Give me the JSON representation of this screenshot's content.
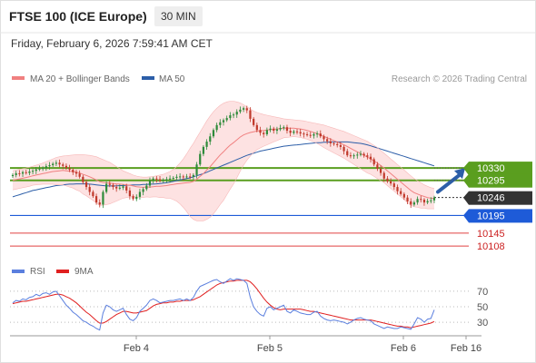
{
  "header": {
    "title": "FTSE 100 (ICE Europe)",
    "timeframe": "30 MIN",
    "datetime": "Friday, February 6, 2026 7:59:41 AM CET"
  },
  "copyright": "Research © 2026 Trading Central",
  "colors": {
    "candle_up": "#2e8b3a",
    "candle_down": "#c0392b",
    "ma20": "#f08080",
    "bollinger_fill": "#fde2e2",
    "ma50": "#2c5ea8",
    "resistance": "#5a9e1f",
    "support": "#1e5bd8",
    "target": "#e04040",
    "last_price": "#333333",
    "rsi": "#5b7fde",
    "rsi_ma": "#e02020",
    "arrow": "#2c5ea8"
  },
  "chart_data": [
    {
      "type": "candlestick",
      "legend": [
        {
          "name": "MA 20 + Bollinger Bands",
          "color": "#f08080"
        },
        {
          "name": "MA 50",
          "color": "#2c5ea8"
        }
      ],
      "x_ticks": [
        "Feb 4",
        "Feb 5",
        "Feb 6",
        "Feb 16"
      ],
      "price_levels": [
        {
          "value": 10330,
          "label": "10330",
          "kind": "resistance"
        },
        {
          "value": 10295,
          "label": "10295",
          "kind": "resistance"
        },
        {
          "value": 10246,
          "label": "10246",
          "kind": "last"
        },
        {
          "value": 10195,
          "label": "10195",
          "kind": "support"
        },
        {
          "value": 10145,
          "label": "10145",
          "kind": "target"
        },
        {
          "value": 10108,
          "label": "10108",
          "kind": "target"
        }
      ],
      "close": [
        10310,
        10315,
        10314,
        10318,
        10316,
        10320,
        10322,
        10326,
        10328,
        10330,
        10335,
        10338,
        10342,
        10345,
        10340,
        10336,
        10330,
        10325,
        10318,
        10314,
        10305,
        10290,
        10276,
        10262,
        10250,
        10232,
        10226,
        10262,
        10285,
        10282,
        10276,
        10272,
        10274,
        10278,
        10266,
        10250,
        10242,
        10248,
        10262,
        10270,
        10280,
        10294,
        10300,
        10298,
        10294,
        10296,
        10298,
        10300,
        10302,
        10305,
        10306,
        10304,
        10306,
        10305,
        10310,
        10340,
        10370,
        10390,
        10405,
        10420,
        10438,
        10452,
        10460,
        10466,
        10472,
        10480,
        10482,
        10490,
        10496,
        10500,
        10494,
        10470,
        10452,
        10438,
        10430,
        10426,
        10438,
        10442,
        10436,
        10440,
        10444,
        10446,
        10436,
        10430,
        10434,
        10432,
        10428,
        10426,
        10424,
        10422,
        10426,
        10428,
        10420,
        10412,
        10406,
        10400,
        10398,
        10395,
        10390,
        10378,
        10366,
        10364,
        10366,
        10368,
        10370,
        10366,
        10362,
        10355,
        10340,
        10328,
        10316,
        10300,
        10292,
        10286,
        10276,
        10264,
        10256,
        10246,
        10235,
        10226,
        10232,
        10242,
        10240,
        10232,
        10236,
        10238,
        10246
      ],
      "ma20": [
        10295,
        10297,
        10299,
        10301,
        10303,
        10305,
        10308,
        10310,
        10312,
        10314,
        10316,
        10318,
        10320,
        10321,
        10322,
        10323,
        10322,
        10321,
        10320,
        10318,
        10316,
        10312,
        10309,
        10305,
        10301,
        10296,
        10291,
        10289,
        10288,
        10287,
        10286,
        10285,
        10284,
        10283,
        10282,
        10281,
        10279,
        10277,
        10276,
        10275,
        10276,
        10276,
        10277,
        10278,
        10278,
        10279,
        10280,
        10282,
        10283,
        10285,
        10286,
        10287,
        10288,
        10289,
        10292,
        10298,
        10306,
        10314,
        10324,
        10334,
        10345,
        10356,
        10367,
        10376,
        10386,
        10395,
        10402,
        10410,
        10418,
        10424,
        10428,
        10431,
        10433,
        10435,
        10436,
        10437,
        10438,
        10439,
        10440,
        10441,
        10442,
        10443,
        10443,
        10443,
        10443,
        10442,
        10441,
        10439,
        10437,
        10434,
        10431,
        10428,
        10424,
        10420,
        10416,
        10412,
        10408,
        10404,
        10400,
        10396,
        10391,
        10386,
        10381,
        10376,
        10371,
        10366,
        10361,
        10356,
        10350,
        10344,
        10337,
        10330,
        10322,
        10314,
        10306,
        10298,
        10290,
        10282,
        10274,
        10266,
        10260,
        10256,
        10252,
        10249,
        10246,
        10244,
        10243
      ],
      "bb_upper": [
        10322,
        10324,
        10326,
        10328,
        10330,
        10332,
        10335,
        10338,
        10341,
        10344,
        10348,
        10352,
        10356,
        10360,
        10362,
        10364,
        10365,
        10366,
        10367,
        10368,
        10368,
        10368,
        10367,
        10366,
        10364,
        10362,
        10358,
        10354,
        10350,
        10346,
        10340,
        10334,
        10328,
        10322,
        10318,
        10314,
        10310,
        10307,
        10305,
        10304,
        10304,
        10305,
        10306,
        10308,
        10310,
        10312,
        10316,
        10320,
        10326,
        10334,
        10344,
        10356,
        10370,
        10386,
        10400,
        10416,
        10432,
        10448,
        10464,
        10478,
        10490,
        10500,
        10508,
        10514,
        10518,
        10520,
        10520,
        10518,
        10515,
        10510,
        10504,
        10498,
        10492,
        10488,
        10485,
        10482,
        10480,
        10478,
        10476,
        10474,
        10472,
        10470,
        10469,
        10468,
        10467,
        10466,
        10465,
        10464,
        10462,
        10460,
        10458,
        10456,
        10454,
        10452,
        10449,
        10446,
        10443,
        10440,
        10437,
        10434,
        10430,
        10426,
        10422,
        10418,
        10414,
        10410,
        10406,
        10400,
        10394,
        10388,
        10380,
        10372,
        10364,
        10356,
        10348,
        10340,
        10332,
        10324,
        10316,
        10308,
        10300,
        10294,
        10288,
        10282,
        10278,
        10274,
        10272
      ],
      "bb_lower": [
        10268,
        10270,
        10272,
        10274,
        10276,
        10278,
        10281,
        10282,
        10283,
        10284,
        10284,
        10284,
        10284,
        10282,
        10282,
        10282,
        10279,
        10276,
        10273,
        10268,
        10264,
        10256,
        10251,
        10244,
        10238,
        10230,
        10224,
        10224,
        10226,
        10228,
        10232,
        10236,
        10240,
        10244,
        10246,
        10248,
        10248,
        10247,
        10247,
        10246,
        10248,
        10247,
        10248,
        10248,
        10246,
        10246,
        10244,
        10244,
        10240,
        10236,
        10228,
        10218,
        10206,
        10192,
        10184,
        10180,
        10180,
        10180,
        10184,
        10190,
        10200,
        10212,
        10226,
        10238,
        10254,
        10270,
        10284,
        10302,
        10321,
        10338,
        10352,
        10364,
        10374,
        10382,
        10387,
        10392,
        10396,
        10400,
        10404,
        10408,
        10412,
        10416,
        10417,
        10418,
        10419,
        10418,
        10417,
        10414,
        10412,
        10408,
        10404,
        10400,
        10394,
        10388,
        10383,
        10378,
        10373,
        10368,
        10363,
        10358,
        10352,
        10346,
        10340,
        10334,
        10328,
        10322,
        10316,
        10312,
        10306,
        10300,
        10294,
        10288,
        10280,
        10272,
        10264,
        10256,
        10248,
        10240,
        10232,
        10224,
        10220,
        10218,
        10216,
        10216,
        10214,
        10214,
        10214
      ],
      "ma50": [
        10248,
        10251,
        10254,
        10257,
        10260,
        10263,
        10266,
        10268,
        10270,
        10272,
        10274,
        10276,
        10278,
        10280,
        10281,
        10282,
        10283,
        10284,
        10284,
        10285,
        10285,
        10285,
        10285,
        10284,
        10283,
        10282,
        10281,
        10280,
        10279,
        10279,
        10279,
        10279,
        10280,
        10280,
        10281,
        10281,
        10282,
        10282,
        10282,
        10283,
        10283,
        10284,
        10284,
        10285,
        10286,
        10287,
        10288,
        10290,
        10292,
        10294,
        10296,
        10298,
        10300,
        10302,
        10305,
        10308,
        10311,
        10314,
        10318,
        10322,
        10326,
        10330,
        10334,
        10338,
        10342,
        10346,
        10350,
        10354,
        10358,
        10362,
        10366,
        10369,
        10372,
        10375,
        10378,
        10380,
        10382,
        10384,
        10386,
        10388,
        10390,
        10392,
        10393,
        10394,
        10395,
        10396,
        10397,
        10398,
        10399,
        10400,
        10401,
        10402,
        10402,
        10403,
        10403,
        10404,
        10404,
        10404,
        10404,
        10404,
        10404,
        10403,
        10402,
        10401,
        10400,
        10398,
        10396,
        10393,
        10390,
        10387,
        10384,
        10381,
        10378,
        10375,
        10372,
        10369,
        10366,
        10363,
        10360,
        10357,
        10354,
        10351,
        10348,
        10345,
        10342,
        10339,
        10336
      ],
      "y_range": [
        10080,
        10560
      ]
    },
    {
      "type": "line",
      "legend": [
        {
          "name": "RSI",
          "color": "#5b7fde"
        },
        {
          "name": "9MA",
          "color": "#e02020"
        }
      ],
      "y_ticks": [
        70,
        50,
        30
      ],
      "y_range": [
        15,
        85
      ],
      "rsi": [
        55,
        58,
        57,
        60,
        59,
        62,
        63,
        66,
        64,
        67,
        68,
        66,
        69,
        70,
        64,
        58,
        52,
        48,
        43,
        40,
        36,
        32,
        30,
        27,
        25,
        22,
        20,
        42,
        52,
        50,
        46,
        44,
        46,
        48,
        40,
        34,
        32,
        36,
        44,
        48,
        52,
        58,
        60,
        58,
        55,
        56,
        57,
        58,
        58,
        59,
        60,
        58,
        60,
        58,
        62,
        70,
        76,
        78,
        80,
        82,
        84,
        85,
        82,
        80,
        83,
        86,
        84,
        86,
        85,
        84,
        80,
        62,
        50,
        44,
        40,
        38,
        48,
        50,
        46,
        48,
        50,
        52,
        44,
        42,
        46,
        44,
        42,
        41,
        40,
        40,
        43,
        44,
        38,
        35,
        33,
        32,
        33,
        32,
        31,
        30,
        28,
        30,
        33,
        35,
        36,
        34,
        33,
        32,
        28,
        26,
        24,
        22,
        24,
        23,
        22,
        22,
        24,
        23,
        22,
        21,
        28,
        36,
        34,
        30,
        34,
        35,
        46
      ],
      "rsi_ma": [
        54,
        55,
        56,
        57,
        57,
        58,
        59,
        60,
        61,
        62,
        63,
        64,
        65,
        66,
        66,
        65,
        63,
        61,
        58,
        55,
        51,
        47,
        43,
        40,
        36,
        32,
        29,
        29,
        31,
        34,
        37,
        40,
        42,
        44,
        44,
        43,
        42,
        42,
        43,
        44,
        45,
        48,
        51,
        53,
        54,
        55,
        55,
        56,
        56,
        57,
        57,
        58,
        58,
        58,
        59,
        61,
        63,
        66,
        69,
        72,
        75,
        78,
        80,
        81,
        82,
        83,
        83,
        84,
        84,
        84,
        84,
        82,
        78,
        73,
        67,
        61,
        56,
        52,
        49,
        47,
        46,
        47,
        47,
        47,
        47,
        47,
        47,
        46,
        45,
        44,
        44,
        43,
        42,
        41,
        40,
        39,
        38,
        37,
        36,
        35,
        34,
        33,
        33,
        33,
        33,
        33,
        33,
        33,
        32,
        31,
        30,
        29,
        28,
        27,
        26,
        25,
        25,
        24,
        24,
        23,
        24,
        25,
        26,
        27,
        28,
        29,
        31
      ]
    }
  ]
}
